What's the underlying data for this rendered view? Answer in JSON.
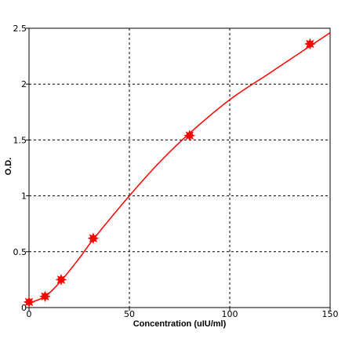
{
  "chart_data": {
    "type": "scatter",
    "title": "",
    "xlabel": "Concentration (uIU/ml)",
    "ylabel": "O.D.",
    "xlim": [
      0,
      150
    ],
    "ylim": [
      0,
      2.5
    ],
    "x_ticks": [
      0,
      50,
      100,
      150
    ],
    "y_ticks": [
      0,
      0.5,
      1,
      1.5,
      2,
      2.5
    ],
    "x_tick_labels": [
      "0",
      "50",
      "100",
      "150"
    ],
    "y_tick_labels": [
      "0",
      "0.5",
      "1",
      "1.5",
      "2",
      "2.5"
    ],
    "grid": true,
    "grid_style": "dotted",
    "series": [
      {
        "type": "scatter",
        "color": "#ff0000",
        "marker": "star",
        "points": [
          {
            "x": 0,
            "y": 0.05
          },
          {
            "x": 8,
            "y": 0.1
          },
          {
            "x": 16,
            "y": 0.25
          },
          {
            "x": 32,
            "y": 0.62
          },
          {
            "x": 80,
            "y": 1.54
          },
          {
            "x": 140,
            "y": 2.36
          }
        ]
      },
      {
        "type": "line",
        "color": "#ff0000",
        "smooth": true,
        "points": [
          {
            "x": 0,
            "y": 0.04
          },
          {
            "x": 8,
            "y": 0.1
          },
          {
            "x": 16,
            "y": 0.24
          },
          {
            "x": 25,
            "y": 0.44
          },
          {
            "x": 32,
            "y": 0.61
          },
          {
            "x": 50,
            "y": 1.0
          },
          {
            "x": 65,
            "y": 1.3
          },
          {
            "x": 80,
            "y": 1.56
          },
          {
            "x": 100,
            "y": 1.86
          },
          {
            "x": 120,
            "y": 2.1
          },
          {
            "x": 140,
            "y": 2.34
          },
          {
            "x": 150,
            "y": 2.46
          }
        ]
      }
    ]
  }
}
